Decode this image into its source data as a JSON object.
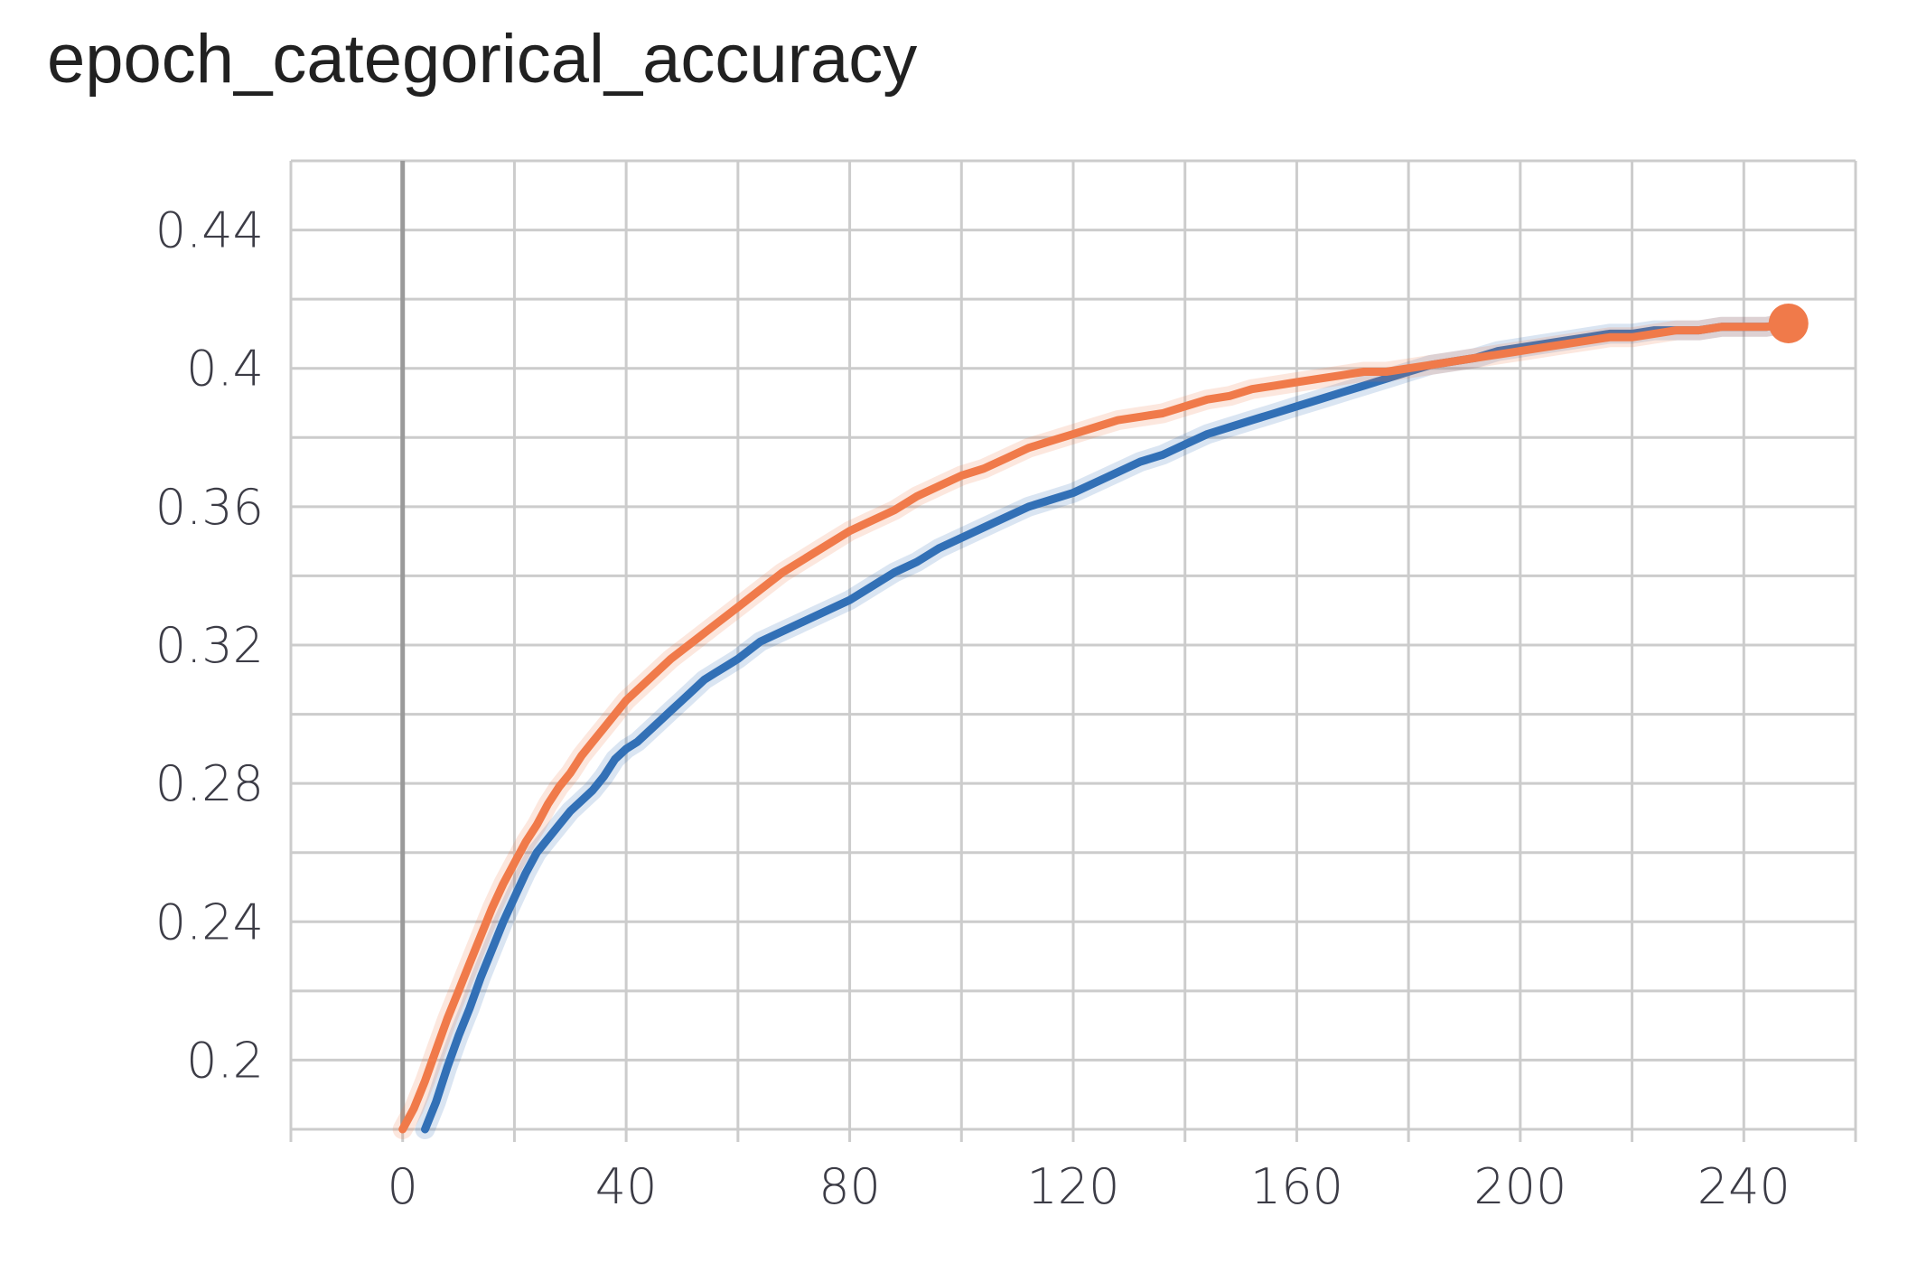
{
  "chart_data": {
    "type": "line",
    "title": "epoch_categorical_accuracy",
    "xlabel": "",
    "ylabel": "",
    "xlim": [
      -20,
      260
    ],
    "ylim": [
      0.18,
      0.46
    ],
    "x_ticks": [
      0,
      40,
      80,
      120,
      160,
      200,
      240
    ],
    "y_ticks": [
      0.2,
      0.24,
      0.28,
      0.32,
      0.36,
      0.4,
      0.44
    ],
    "x_tick_labels": [
      "0",
      "40",
      "80",
      "120",
      "160",
      "200",
      "240"
    ],
    "y_tick_labels": [
      "0.2",
      "0.24",
      "0.28",
      "0.32",
      "0.36",
      "0.4",
      "0.44"
    ],
    "grid": true,
    "legend": "none",
    "series": [
      {
        "color": "#3270b6",
        "x": [
          4,
          6,
          8,
          10,
          12,
          14,
          16,
          18,
          20,
          22,
          24,
          26,
          28,
          30,
          32,
          34,
          36,
          38,
          40,
          42,
          44,
          46,
          48,
          50,
          52,
          54,
          56,
          58,
          60,
          64,
          68,
          72,
          76,
          80,
          84,
          88,
          92,
          96,
          100,
          104,
          108,
          112,
          116,
          120,
          124,
          128,
          132,
          136,
          140,
          144,
          148,
          152,
          156,
          160,
          164,
          168,
          172,
          176,
          180,
          184,
          188,
          192,
          196,
          200,
          204,
          208,
          212,
          216,
          220,
          224,
          228,
          232,
          236,
          240,
          244,
          248
        ],
        "y": [
          0.18,
          0.188,
          0.198,
          0.207,
          0.215,
          0.224,
          0.232,
          0.24,
          0.247,
          0.254,
          0.26,
          0.264,
          0.268,
          0.272,
          0.275,
          0.278,
          0.282,
          0.287,
          0.29,
          0.292,
          0.295,
          0.298,
          0.301,
          0.304,
          0.307,
          0.31,
          0.312,
          0.314,
          0.316,
          0.321,
          0.324,
          0.327,
          0.33,
          0.333,
          0.337,
          0.341,
          0.344,
          0.348,
          0.351,
          0.354,
          0.357,
          0.36,
          0.362,
          0.364,
          0.367,
          0.37,
          0.373,
          0.375,
          0.378,
          0.381,
          0.383,
          0.385,
          0.387,
          0.389,
          0.391,
          0.393,
          0.395,
          0.397,
          0.399,
          0.401,
          0.402,
          0.403,
          0.405,
          0.406,
          0.407,
          0.408,
          0.409,
          0.41,
          0.41,
          0.411,
          0.411,
          0.411,
          0.412,
          0.412,
          0.412,
          0.413
        ]
      },
      {
        "color": "#f07a4a",
        "x": [
          0,
          2,
          4,
          6,
          8,
          10,
          12,
          14,
          16,
          18,
          20,
          22,
          24,
          26,
          28,
          30,
          32,
          34,
          36,
          38,
          40,
          44,
          48,
          52,
          56,
          60,
          64,
          68,
          72,
          76,
          80,
          84,
          88,
          92,
          96,
          100,
          104,
          108,
          112,
          116,
          120,
          124,
          128,
          132,
          136,
          140,
          144,
          148,
          152,
          156,
          160,
          164,
          168,
          172,
          176,
          180,
          184,
          188,
          192,
          196,
          200,
          204,
          208,
          212,
          216,
          220,
          224,
          228,
          232,
          236,
          240,
          244,
          248
        ],
        "y": [
          0.18,
          0.186,
          0.194,
          0.203,
          0.212,
          0.22,
          0.228,
          0.236,
          0.244,
          0.251,
          0.257,
          0.263,
          0.268,
          0.274,
          0.279,
          0.283,
          0.288,
          0.292,
          0.296,
          0.3,
          0.304,
          0.31,
          0.316,
          0.321,
          0.326,
          0.331,
          0.336,
          0.341,
          0.345,
          0.349,
          0.353,
          0.356,
          0.359,
          0.363,
          0.366,
          0.369,
          0.371,
          0.374,
          0.377,
          0.379,
          0.381,
          0.383,
          0.385,
          0.386,
          0.387,
          0.389,
          0.391,
          0.392,
          0.394,
          0.395,
          0.396,
          0.397,
          0.398,
          0.399,
          0.399,
          0.4,
          0.401,
          0.402,
          0.403,
          0.404,
          0.405,
          0.406,
          0.407,
          0.408,
          0.409,
          0.409,
          0.41,
          0.411,
          0.411,
          0.412,
          0.412,
          0.412,
          0.413
        ]
      }
    ]
  }
}
